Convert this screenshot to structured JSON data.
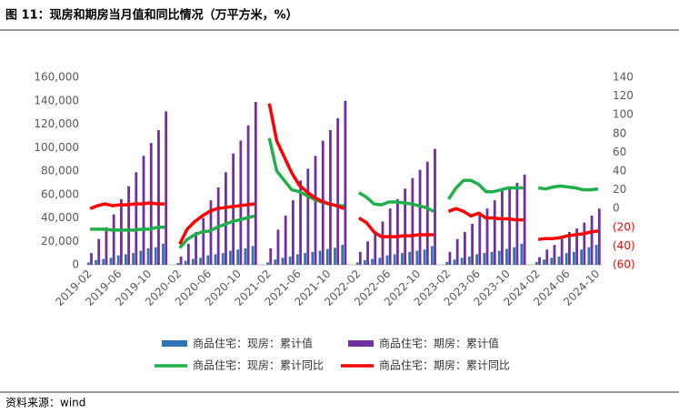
{
  "chart_data": {
    "type": "bar_line",
    "title": "图 11：现房和期房当月值和同比情况（万平方米，%）",
    "source": "资料来源：wind",
    "categories": [
      "2019-02",
      null,
      null,
      null,
      "2019-06",
      null,
      null,
      null,
      "2019-10",
      null,
      null,
      null,
      "2020-02",
      null,
      null,
      null,
      "2020-06",
      null,
      null,
      null,
      "2020-10",
      null,
      null,
      null,
      "2021-02",
      null,
      null,
      null,
      "2021-06",
      null,
      null,
      null,
      "2021-10",
      null,
      null,
      null,
      "2022-02",
      null,
      null,
      null,
      "2022-06",
      null,
      null,
      null,
      "2022-10",
      null,
      null,
      null,
      "2023-02",
      null,
      null,
      null,
      "2023-06",
      null,
      null,
      null,
      "2023-10",
      null,
      null,
      null,
      "2024-02",
      null,
      null,
      null,
      "2024-06",
      null,
      null,
      null,
      "2024-10"
    ],
    "series": [
      {
        "name": "商品住宅：现房：累计值",
        "color": "#2e75b6",
        "kind": "bar",
        "axis": "y",
        "values": [
          2000,
          4000,
          5000,
          6000,
          8000,
          9000,
          10000,
          12000,
          14000,
          15000,
          18000,
          null,
          1500,
          3500,
          5000,
          6000,
          8000,
          9000,
          10000,
          12000,
          13000,
          14000,
          16000,
          null,
          2000,
          4500,
          6000,
          7000,
          9000,
          10000,
          11000,
          12000,
          13500,
          14500,
          17000,
          null,
          2000,
          4000,
          5000,
          6000,
          8000,
          9000,
          10000,
          11000,
          12000,
          13000,
          16000,
          null,
          2500,
          4500,
          6000,
          7000,
          9000,
          10000,
          11000,
          12000,
          13500,
          15000,
          18000,
          null,
          2500,
          4500,
          6000,
          7000,
          10000,
          11000,
          13000,
          15000,
          17000
        ]
      },
      {
        "name": "商品住宅：期房：累计值",
        "color": "#7030a0",
        "kind": "bar",
        "axis": "y",
        "values": [
          10000,
          22000,
          32000,
          43000,
          56000,
          67000,
          79000,
          93000,
          104000,
          115000,
          131000,
          null,
          7000,
          18000,
          28000,
          40000,
          55000,
          66000,
          79000,
          95000,
          106000,
          119000,
          139000,
          null,
          14000,
          30000,
          42000,
          55000,
          72000,
          82000,
          93000,
          106000,
          115000,
          125000,
          140000,
          null,
          11000,
          20000,
          27000,
          37000,
          48000,
          56000,
          65000,
          74000,
          81000,
          88000,
          99000,
          null,
          11000,
          22000,
          28000,
          35000,
          45000,
          48000,
          55000,
          63000,
          66000,
          70000,
          77000,
          null,
          6500,
          13000,
          17000,
          22000,
          28000,
          31000,
          36000,
          42000,
          48000
        ]
      },
      {
        "name": "商品住宅：现房：累计同比",
        "color": "#1fb04a",
        "kind": "line",
        "axis": "y2",
        "values": [
          -22,
          -22,
          -22,
          -23,
          -23,
          -23,
          -23,
          -22,
          -22,
          -20,
          -20,
          null,
          -42,
          -33,
          -28,
          -25,
          -24,
          -20,
          -17,
          -14,
          -12,
          -10,
          -8,
          null,
          75,
          40,
          30,
          20,
          18,
          14,
          10,
          7,
          5,
          3,
          3,
          null,
          17,
          12,
          5,
          4,
          7,
          7,
          6,
          5,
          3,
          1,
          -3,
          null,
          10,
          22,
          30,
          30,
          26,
          18,
          18,
          20,
          22,
          22,
          22,
          null,
          22,
          21,
          23,
          24,
          23,
          22,
          20,
          20,
          21
        ]
      },
      {
        "name": "商品住宅：期房：累计同比",
        "color": "#ff0000",
        "kind": "line",
        "axis": "y2",
        "values": [
          0,
          3,
          5,
          3,
          4,
          4,
          5,
          5,
          6,
          5,
          5,
          null,
          -38,
          -22,
          -14,
          -8,
          -3,
          0,
          1,
          2,
          3,
          4,
          5,
          null,
          112,
          72,
          55,
          38,
          25,
          18,
          12,
          8,
          5,
          3,
          0,
          null,
          -10,
          -15,
          -25,
          -30,
          -30,
          -30,
          -29,
          -29,
          -28,
          -28,
          -28,
          null,
          -3,
          0,
          -3,
          -8,
          -5,
          -10,
          -10,
          -11,
          -11,
          -12,
          -12,
          null,
          -33,
          -32,
          -32,
          -31,
          -29,
          -28,
          -27,
          -25,
          -24
        ]
      }
    ],
    "ylim": [
      0,
      160000
    ],
    "yticks": [
      0,
      {
        "value": 20000,
        "label": "20,000"
      },
      {
        "value": 40000,
        "label": "40,000"
      },
      {
        "value": 60000,
        "label": "60,000"
      },
      {
        "value": 80000,
        "label": "80,000"
      },
      {
        "value": 100000,
        "label": "100,000"
      },
      {
        "value": 120000,
        "label": "120,000"
      },
      {
        "value": 140000,
        "label": "140,000"
      },
      {
        "value": 160000,
        "label": "160,000"
      }
    ],
    "y2lim": [
      -60,
      140
    ],
    "y2ticks": [
      {
        "value": -60,
        "label": "(60)"
      },
      {
        "value": -40,
        "label": "(40)"
      },
      {
        "value": -20,
        "label": "(20)"
      },
      0,
      20,
      40,
      60,
      80,
      100,
      120,
      140
    ],
    "y2_negative_label_color": "#ff0000"
  }
}
